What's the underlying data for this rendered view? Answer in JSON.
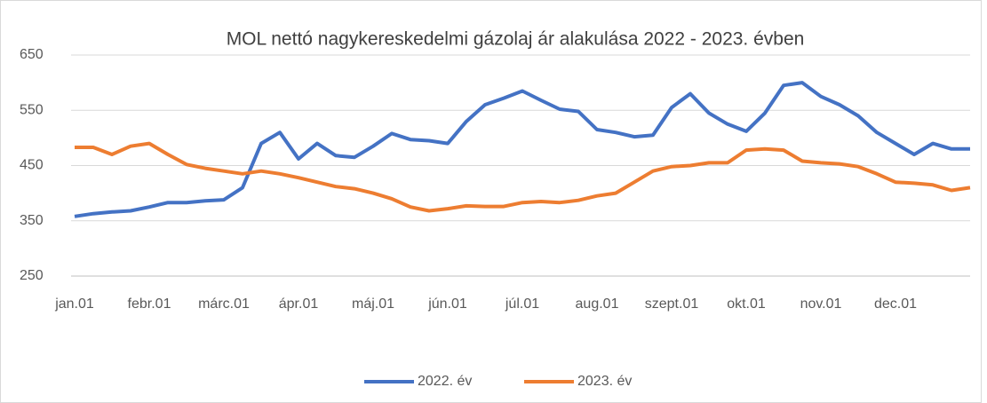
{
  "chart_data": {
    "type": "line",
    "title": "MOL nettó nagykereskedelmi gázolaj ár alakulása 2022 - 2023. évben",
    "categories": [
      "jan.01",
      null,
      null,
      null,
      "febr.01",
      null,
      null,
      null,
      "márc.01",
      null,
      null,
      null,
      "ápr.01",
      null,
      null,
      null,
      "máj.01",
      null,
      null,
      null,
      "jún.01",
      null,
      null,
      null,
      "júl.01",
      null,
      null,
      null,
      "aug.01",
      null,
      null,
      null,
      "szept.01",
      null,
      null,
      null,
      "okt.01",
      null,
      null,
      null,
      "nov.01",
      null,
      null,
      null,
      "dec.01",
      null,
      null,
      null,
      null
    ],
    "series": [
      {
        "name": "2022. év",
        "color": "#4472c4",
        "values": [
          358,
          363,
          366,
          368,
          375,
          383,
          383,
          386,
          388,
          410,
          490,
          510,
          462,
          490,
          468,
          465,
          485,
          508,
          497,
          495,
          490,
          530,
          560,
          572,
          585,
          568,
          552,
          548,
          515,
          510,
          502,
          505,
          555,
          580,
          545,
          525,
          512,
          545,
          595,
          600,
          575,
          560,
          540,
          510,
          490,
          470,
          490,
          480,
          480
        ]
      },
      {
        "name": "2023. év",
        "color": "#ed7d31",
        "values": [
          483,
          483,
          470,
          485,
          490,
          470,
          452,
          445,
          440,
          435,
          440,
          435,
          428,
          420,
          412,
          408,
          400,
          390,
          375,
          368,
          372,
          377,
          376,
          376,
          383,
          385,
          383,
          387,
          395,
          400,
          420,
          440,
          448,
          450,
          455,
          455,
          478,
          480,
          478,
          458,
          455,
          453,
          448,
          435,
          420,
          418,
          415,
          405,
          410
        ]
      }
    ],
    "ylim": [
      250,
      650
    ],
    "yticks": [
      250,
      350,
      450,
      550,
      650
    ],
    "grid": true,
    "legend": "bottom"
  }
}
